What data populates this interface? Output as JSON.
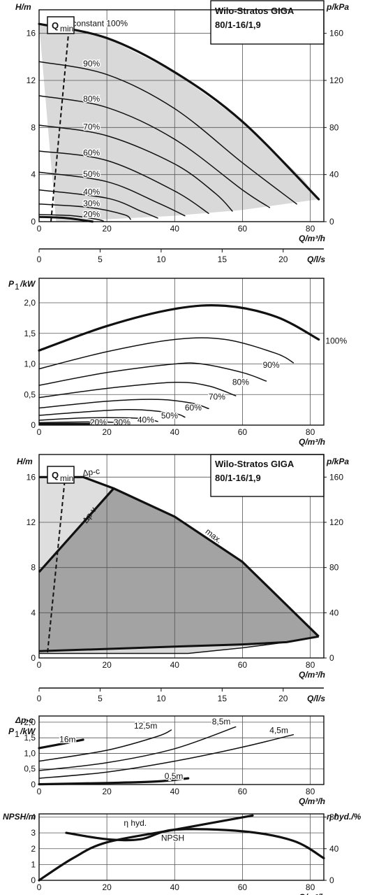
{
  "chart_data": [
    {
      "id": "h1",
      "type": "line",
      "title": "Wilo-Stratos GIGA",
      "subtitle": "80/1-16/1,9",
      "xlabel": "Q/m³/h",
      "ylabel": "H/m",
      "y2label": "p/kPa",
      "xlim": [
        0,
        84
      ],
      "ylim": [
        0,
        18
      ],
      "xticks": [
        0,
        20,
        40,
        60,
        80
      ],
      "yticks": [
        0,
        4,
        8,
        12,
        16
      ],
      "y2ticks": [
        0,
        40,
        80,
        120,
        160
      ],
      "grid": true,
      "qmin_label": "Q",
      "qmin_sub": "min",
      "qmin_line": [
        [
          3.5,
          0
        ],
        [
          9,
          17
        ]
      ],
      "operating_area": [
        [
          0,
          16.8
        ],
        [
          20,
          15.6
        ],
        [
          40,
          12.7
        ],
        [
          60,
          8.5
        ],
        [
          78,
          3.6
        ],
        [
          80,
          2.8
        ],
        [
          82.5,
          1.9
        ],
        [
          60,
          1.0
        ],
        [
          40,
          0.5
        ],
        [
          20,
          0.2
        ],
        [
          5,
          0
        ]
      ],
      "series": [
        {
          "name": "max",
          "label": "n=constant 100%",
          "bold": true,
          "label_at": [
            7,
            16.6
          ],
          "points": [
            [
              0,
              16.8
            ],
            [
              20,
              15.6
            ],
            [
              40,
              12.7
            ],
            [
              60,
              8.5
            ],
            [
              82.5,
              1.9
            ]
          ]
        },
        {
          "name": "90%",
          "label": "90%",
          "label_at": [
            13,
            13.2
          ],
          "points": [
            [
              0,
              13.6
            ],
            [
              20,
              12.5
            ],
            [
              40,
              9.6
            ],
            [
              60,
              5.0
            ],
            [
              76,
              1.5
            ]
          ]
        },
        {
          "name": "80%",
          "label": "80%",
          "label_at": [
            13,
            10.2
          ],
          "points": [
            [
              0,
              10.7
            ],
            [
              20,
              9.7
            ],
            [
              40,
              7.0
            ],
            [
              60,
              2.7
            ],
            [
              68,
              1.2
            ]
          ]
        },
        {
          "name": "70%",
          "label": "70%",
          "label_at": [
            13,
            7.8
          ],
          "points": [
            [
              0,
              8.2
            ],
            [
              20,
              7.3
            ],
            [
              40,
              4.9
            ],
            [
              52,
              2.4
            ],
            [
              57,
              0.9
            ]
          ]
        },
        {
          "name": "60%",
          "label": "60%",
          "label_at": [
            13,
            5.6
          ],
          "points": [
            [
              0,
              6.0
            ],
            [
              20,
              5.2
            ],
            [
              40,
              2.6
            ],
            [
              50,
              0.7
            ]
          ]
        },
        {
          "name": "50%",
          "label": "50%",
          "label_at": [
            13,
            3.8
          ],
          "points": [
            [
              0,
              4.2
            ],
            [
              20,
              3.4
            ],
            [
              35,
              1.6
            ],
            [
              43,
              0.5
            ]
          ]
        },
        {
          "name": "40%",
          "label": "40%",
          "label_at": [
            13,
            2.3
          ],
          "points": [
            [
              0,
              2.7
            ],
            [
              20,
              2.0
            ],
            [
              30,
              0.9
            ],
            [
              35,
              0.3
            ]
          ]
        },
        {
          "name": "30%",
          "label": "30%",
          "label_at": [
            13,
            1.3
          ],
          "points": [
            [
              0,
              1.5
            ],
            [
              15,
              1.2
            ],
            [
              25,
              0.6
            ],
            [
              27,
              0.2
            ]
          ]
        },
        {
          "name": "20%",
          "label": "20%",
          "label_at": [
            13,
            0.4
          ],
          "points": [
            [
              0,
              0.6
            ],
            [
              10,
              0.5
            ],
            [
              17,
              0.2
            ],
            [
              19,
              0.05
            ]
          ]
        }
      ],
      "min_curve": [
        [
          0,
          0.4
        ],
        [
          8,
          0.3
        ],
        [
          16,
          0
        ]
      ]
    },
    {
      "id": "qls1",
      "type": "axis",
      "xlabel": "Q/l/s",
      "xlim": [
        0,
        23.33
      ],
      "xticks": [
        0,
        5,
        10,
        15,
        20,
        25
      ]
    },
    {
      "id": "p1",
      "type": "line",
      "xlabel": "Q/m³/h",
      "ylabel": "P1/kW",
      "ylabel_main": "P",
      "ylabel_sub": "1",
      "ylabel_unit": "/kW",
      "xlim": [
        0,
        84
      ],
      "ylim": [
        0,
        2.4
      ],
      "xticks": [
        0,
        20,
        40,
        60,
        80
      ],
      "yticks": [
        0,
        0.5,
        1.0,
        1.5,
        2.0
      ],
      "ytick_labels": [
        "0",
        "0,5",
        "1,0",
        "1,5",
        "2,0"
      ],
      "grid": true,
      "series": [
        {
          "name": "100%",
          "label": "100%",
          "bold": true,
          "label_at": [
            84.5,
            1.33
          ],
          "points": [
            [
              0,
              1.22
            ],
            [
              20,
              1.62
            ],
            [
              40,
              1.9
            ],
            [
              55,
              1.95
            ],
            [
              70,
              1.77
            ],
            [
              82.5,
              1.4
            ]
          ]
        },
        {
          "name": "90%",
          "label": "90%",
          "label_at": [
            66,
            0.94
          ],
          "points": [
            [
              0,
              0.92
            ],
            [
              20,
              1.2
            ],
            [
              40,
              1.4
            ],
            [
              55,
              1.4
            ],
            [
              70,
              1.17
            ],
            [
              75,
              1.02
            ]
          ]
        },
        {
          "name": "80%",
          "label": "80%",
          "label_at": [
            57,
            0.66
          ],
          "points": [
            [
              0,
              0.65
            ],
            [
              20,
              0.86
            ],
            [
              40,
              1.0
            ],
            [
              48,
              1.0
            ],
            [
              60,
              0.86
            ],
            [
              67,
              0.72
            ]
          ]
        },
        {
          "name": "70%",
          "label": "70%",
          "label_at": [
            50,
            0.42
          ],
          "points": [
            [
              0,
              0.45
            ],
            [
              20,
              0.6
            ],
            [
              40,
              0.7
            ],
            [
              50,
              0.64
            ],
            [
              58,
              0.48
            ]
          ]
        },
        {
          "name": "60%",
          "label": "60%",
          "label_at": [
            43,
            0.24
          ],
          "points": [
            [
              0,
              0.28
            ],
            [
              20,
              0.39
            ],
            [
              35,
              0.42
            ],
            [
              45,
              0.36
            ],
            [
              50,
              0.27
            ]
          ]
        },
        {
          "name": "50%",
          "label": "50%",
          "label_at": [
            36,
            0.11
          ],
          "points": [
            [
              0,
              0.16
            ],
            [
              20,
              0.24
            ],
            [
              30,
              0.25
            ],
            [
              40,
              0.19
            ],
            [
              43,
              0.13
            ]
          ]
        },
        {
          "name": "40%",
          "label": "40%",
          "label_at": [
            29,
            0.04
          ],
          "points": [
            [
              0,
              0.08
            ],
            [
              15,
              0.12
            ],
            [
              30,
              0.11
            ],
            [
              35,
              0.06
            ]
          ]
        },
        {
          "name": "30%",
          "label": "30%",
          "label_at": [
            22,
            0.0
          ],
          "points": [
            [
              0,
              0.04
            ],
            [
              10,
              0.05
            ],
            [
              20,
              0.05
            ],
            [
              27,
              0.02
            ]
          ]
        },
        {
          "name": "20%",
          "label": "20%",
          "label_at": [
            15,
            0.0
          ],
          "points": [
            [
              0,
              0.015
            ],
            [
              10,
              0.02
            ],
            [
              18,
              0.01
            ]
          ]
        }
      ],
      "min_curve": [
        [
          0,
          0.02
        ],
        [
          15,
          0.02
        ]
      ]
    },
    {
      "id": "h2",
      "type": "area",
      "title": "Wilo-Stratos GIGA",
      "subtitle": "80/1-16/1,9",
      "xlabel": "Q/m³/h",
      "ylabel": "H/m",
      "y2label": "p/kPa",
      "xlim": [
        0,
        84
      ],
      "ylim": [
        0,
        18
      ],
      "xticks": [
        0,
        20,
        40,
        60,
        80
      ],
      "yticks": [
        0,
        4,
        8,
        12,
        16
      ],
      "y2ticks": [
        0,
        40,
        80,
        120,
        160
      ],
      "grid": true,
      "qmin_label": "Q",
      "qmin_sub": "min",
      "qmin_line": [
        [
          2.5,
          0.5
        ],
        [
          8,
          17
        ]
      ],
      "light_area": [
        [
          0,
          16
        ],
        [
          13,
          16
        ],
        [
          22,
          15
        ],
        [
          0,
          7.6
        ]
      ],
      "dark_area": [
        [
          0,
          7.6
        ],
        [
          22,
          15
        ],
        [
          40,
          12.5
        ],
        [
          60,
          8.5
        ],
        [
          82.5,
          1.9
        ],
        [
          75,
          1.5
        ],
        [
          60,
          1.2
        ],
        [
          40,
          1.0
        ],
        [
          20,
          0.8
        ],
        [
          0,
          0.6
        ]
      ],
      "lower_area": [
        [
          0,
          0.6
        ],
        [
          20,
          0.8
        ],
        [
          40,
          1.0
        ],
        [
          60,
          1.2
        ],
        [
          73,
          1.4
        ],
        [
          60,
          1.0
        ],
        [
          45,
          0.4
        ],
        [
          0,
          0.4
        ]
      ],
      "max_curve": [
        [
          0,
          16
        ],
        [
          13,
          16
        ],
        [
          22,
          15
        ],
        [
          40,
          12.5
        ],
        [
          60,
          8.5
        ],
        [
          82.5,
          1.9
        ]
      ],
      "dpv_curve": [
        [
          0,
          7.6
        ],
        [
          22,
          15
        ]
      ],
      "min_upper": [
        [
          0,
          0.6
        ],
        [
          20,
          0.8
        ],
        [
          40,
          1.0
        ],
        [
          60,
          1.2
        ],
        [
          73,
          1.4
        ],
        [
          82.5,
          1.9
        ]
      ],
      "min_lower": [
        [
          0,
          0.4
        ],
        [
          44,
          0.4
        ],
        [
          60,
          0.9
        ],
        [
          73,
          1.4
        ]
      ],
      "labels": [
        {
          "text": "Δp-c",
          "at": [
            15.5,
            16.2
          ],
          "angle": -8
        },
        {
          "text": "Δp-v",
          "at": [
            15.5,
            12.5
          ],
          "angle": -55
        },
        {
          "text": "max.",
          "at": [
            51,
            10.6
          ],
          "angle": 38
        }
      ]
    },
    {
      "id": "qls2",
      "type": "axis",
      "xlabel": "Q/l/s",
      "xlim": [
        0,
        23.33
      ],
      "xticks": [
        0,
        5,
        10,
        15,
        20,
        25
      ]
    },
    {
      "id": "p2",
      "type": "line",
      "xlabel": "Q/m³/h",
      "ylabel_top": "Δp-c",
      "ylabel_main": "P",
      "ylabel_sub": "1",
      "ylabel_unit": "/kW",
      "xlim": [
        0,
        84
      ],
      "ylim": [
        0,
        2.2
      ],
      "xticks": [
        0,
        20,
        40,
        60,
        80
      ],
      "yticks": [
        0,
        0.5,
        1.0,
        1.5,
        2.0
      ],
      "ytick_labels": [
        "0",
        "0,5",
        "1,0",
        "1,5",
        "2,0"
      ],
      "grid": true,
      "series": [
        {
          "name": "16m",
          "label": "16m",
          "bold": true,
          "label_at": [
            6,
            1.36
          ],
          "points": [
            [
              0,
              1.17
            ],
            [
              5,
              1.27
            ],
            [
              13,
              1.44
            ]
          ]
        },
        {
          "name": "12,5m",
          "label": "12,5m",
          "label_at": [
            28,
            1.8
          ],
          "points": [
            [
              0,
              0.75
            ],
            [
              20,
              1.1
            ],
            [
              35,
              1.55
            ],
            [
              39,
              1.75
            ]
          ]
        },
        {
          "name": "8,5m",
          "label": "8,5m",
          "label_at": [
            51,
            1.93
          ],
          "points": [
            [
              0,
              0.45
            ],
            [
              20,
              0.7
            ],
            [
              40,
              1.15
            ],
            [
              58,
              1.85
            ]
          ]
        },
        {
          "name": "4,5m",
          "label": "4,5m",
          "label_at": [
            68,
            1.65
          ],
          "points": [
            [
              0,
              0.2
            ],
            [
              20,
              0.4
            ],
            [
              40,
              0.75
            ],
            [
              60,
              1.2
            ],
            [
              75,
              1.6
            ]
          ]
        },
        {
          "name": "0,5m",
          "label": "0,5m",
          "bold": true,
          "label_at": [
            37,
            0.18
          ],
          "points": [
            [
              0,
              0.01
            ],
            [
              20,
              0.05
            ],
            [
              35,
              0.1
            ],
            [
              44,
              0.2
            ]
          ]
        }
      ]
    },
    {
      "id": "npsh",
      "type": "line",
      "xlabel": "Q/m³/h",
      "ylabel": "NPSH/m",
      "y2label": "η hyd./%",
      "xlim": [
        0,
        84
      ],
      "ylim": [
        0,
        4.2
      ],
      "xticks": [
        0,
        20,
        40,
        60,
        80
      ],
      "yticks": [
        0,
        1,
        2,
        3,
        4
      ],
      "y2lim": [
        0,
        84
      ],
      "y2ticks": [
        0,
        40,
        80
      ],
      "grid": true,
      "series": [
        {
          "name": "NPSH",
          "label": "NPSH",
          "bold": true,
          "axis": "left",
          "label_at": [
            36,
            2.5
          ],
          "points": [
            [
              8,
              3.0
            ],
            [
              20,
              2.6
            ],
            [
              30,
              2.6
            ],
            [
              40,
              3.2
            ],
            [
              60,
              3.1
            ],
            [
              75,
              2.5
            ],
            [
              84,
              1.4
            ]
          ]
        },
        {
          "name": "η hyd.",
          "label": "η hyd.",
          "bold": true,
          "axis": "right",
          "label_at": [
            25,
            3.45
          ],
          "points": [
            [
              0,
              0
            ],
            [
              10,
              28
            ],
            [
              20,
              48
            ],
            [
              40,
              64
            ],
            [
              63,
              82
            ]
          ]
        }
      ]
    }
  ]
}
